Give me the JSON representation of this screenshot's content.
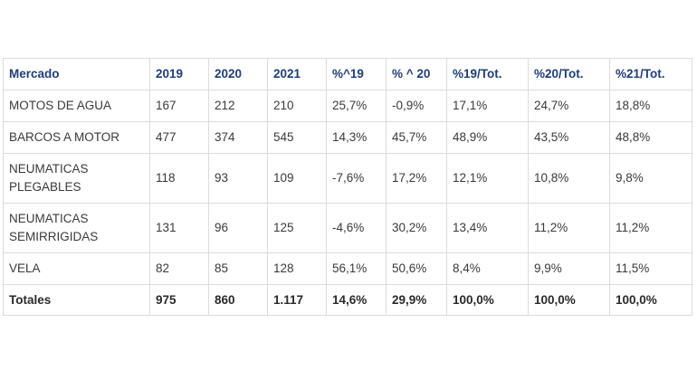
{
  "table": {
    "headers": [
      "Mercado",
      "2019",
      "2020",
      "2021",
      "%^19",
      "% ^ 20",
      "%19/Tot.",
      "%20/Tot.",
      "%21/Tot."
    ],
    "rows": [
      [
        "MOTOS DE AGUA",
        "167",
        "212",
        "210",
        "25,7%",
        "-0,9%",
        "17,1%",
        "24,7%",
        "18,8%"
      ],
      [
        "BARCOS A MOTOR",
        "477",
        "374",
        "545",
        "14,3%",
        "45,7%",
        "48,9%",
        "43,5%",
        "48,8%"
      ],
      [
        "NEUMATICAS PLEGABLES",
        "118",
        "93",
        "109",
        "-7,6%",
        "17,2%",
        "12,1%",
        "10,8%",
        "9,8%"
      ],
      [
        "NEUMATICAS SEMIRRIGIDAS",
        "131",
        "96",
        "125",
        "-4,6%",
        "30,2%",
        "13,4%",
        "11,2%",
        "11,2%"
      ],
      [
        "VELA",
        "82",
        "85",
        "128",
        "56,1%",
        "50,6%",
        "8,4%",
        "9,9%",
        "11,5%"
      ]
    ],
    "totals": [
      "Totales",
      "975",
      "860",
      "1.117",
      "14,6%",
      "29,9%",
      "100,0%",
      "100,0%",
      "100,0%"
    ]
  },
  "colors": {
    "header_text": "#1f3e78",
    "border": "#dcdcdc",
    "body_text": "#3a3a3a"
  }
}
